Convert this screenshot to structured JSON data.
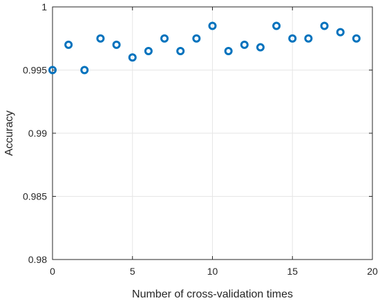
{
  "chart_data": {
    "type": "scatter",
    "xlabel": "Number of cross-validation times",
    "ylabel": "Accuracy",
    "xlim": [
      0,
      20
    ],
    "ylim": [
      0.98,
      1.0
    ],
    "grid": true,
    "x_ticks": [
      "0",
      "5",
      "10",
      "15",
      "20"
    ],
    "y_ticks": [
      "0.98",
      "0.985",
      "0.99",
      "0.995",
      "1"
    ],
    "series": [
      {
        "color": "#0072BD",
        "x": [
          0,
          1,
          2,
          3,
          4,
          5,
          6,
          7,
          8,
          9,
          10,
          11,
          12,
          13,
          14,
          15,
          16,
          17,
          18,
          19
        ],
        "y": [
          0.995,
          0.997,
          0.995,
          0.9975,
          0.997,
          0.996,
          0.9965,
          0.9975,
          0.9965,
          0.9975,
          0.9985,
          0.9965,
          0.997,
          0.9968,
          0.9985,
          0.9975,
          0.9975,
          0.9985,
          0.998,
          0.9975
        ]
      }
    ]
  }
}
